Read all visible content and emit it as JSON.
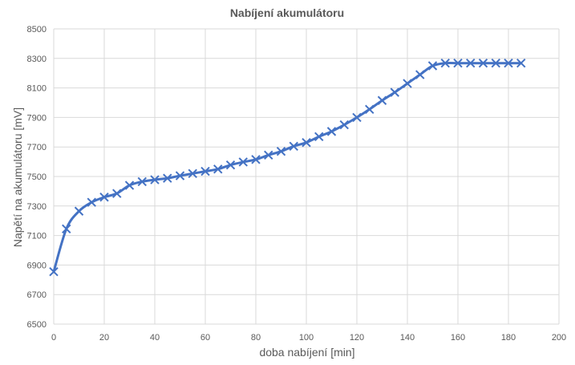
{
  "chart_data": {
    "type": "scatter",
    "title": "Nabíjení akumulátoru",
    "xlabel": "doba nabíjení [min]",
    "ylabel": "Napětí na akumulátoru [mV]",
    "xlim": [
      0,
      200
    ],
    "ylim": [
      6500,
      8500
    ],
    "x_ticks": [
      0,
      20,
      40,
      60,
      80,
      100,
      120,
      140,
      160,
      180,
      200
    ],
    "y_ticks": [
      6500,
      6700,
      6900,
      7100,
      7300,
      7500,
      7700,
      7900,
      8100,
      8300,
      8500
    ],
    "grid": true,
    "legend": "none",
    "line_color": "#4472c4",
    "marker": "x",
    "smooth": true,
    "series": [
      {
        "x": [
          0,
          5,
          10,
          15,
          20,
          25,
          30,
          35,
          40,
          45,
          50,
          55,
          60,
          65,
          70,
          75,
          80,
          85,
          90,
          95,
          100,
          105,
          110,
          115,
          120,
          125,
          130,
          135,
          140,
          145,
          150,
          155,
          160,
          165,
          170,
          175,
          180,
          185
        ],
        "y": [
          6855,
          7145,
          7265,
          7325,
          7360,
          7385,
          7440,
          7465,
          7478,
          7488,
          7505,
          7520,
          7535,
          7550,
          7578,
          7598,
          7615,
          7645,
          7670,
          7705,
          7730,
          7770,
          7805,
          7850,
          7900,
          7955,
          8015,
          8070,
          8130,
          8190,
          8250,
          8268,
          8268,
          8268,
          8268,
          8268,
          8268,
          8268
        ]
      }
    ]
  }
}
